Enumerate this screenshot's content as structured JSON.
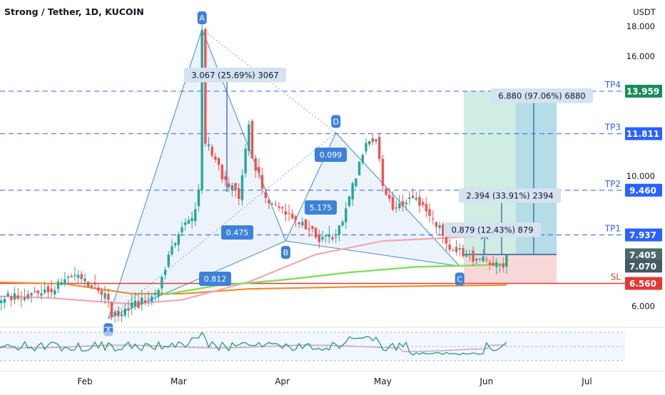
{
  "header": {
    "title": "Strong / Tether, 1D, KUCOIN"
  },
  "colors": {
    "bull": "#26a69a",
    "bear": "#ef5350",
    "pattern_stroke": "#5b9bd5",
    "pattern_fill": "#dfeaf7",
    "level_line": "#2962ff",
    "tp_badge": "#2962ff",
    "target_badge": "#1b8a5a",
    "sl_badge": "#e53935",
    "price_badge": "#26a69a",
    "ma_pink": "#f4a6b4",
    "ma_green": "#7ee05a",
    "ma_orange": "#f28c28",
    "rsi_line": "#2a9d6a",
    "rsi_ma": "#c39bd3",
    "profit_zone": "#bfe7da",
    "loss_zone": "#f8d4d4",
    "label_bg": "#d4e2f2"
  },
  "chart_data": {
    "type": "candlestick",
    "title": "Strong / Tether, 1D, KUCOIN",
    "y_unit": "USDT",
    "y_scale": "log",
    "ylim": [
      5.6,
      19.2
    ],
    "y_ticks": [
      "18.000",
      "16.000",
      "10.000",
      "6.000"
    ],
    "x_ticks": [
      "Feb",
      "Mar",
      "Apr",
      "May",
      "Jun",
      "Jul"
    ],
    "grid": false,
    "harmonic_points": [
      {
        "label": "X",
        "date": "2022-02-08",
        "price": 5.72
      },
      {
        "label": "A",
        "date": "2022-03-08",
        "price": 17.8
      },
      {
        "label": "B",
        "date": "2022-04-02",
        "price": 7.75
      },
      {
        "label": "C",
        "date": "2022-05-24",
        "price": 7.02
      },
      {
        "label": "D",
        "date": "2022-04-17",
        "price": 11.85
      }
    ],
    "ratio_labels": [
      "0.812",
      "0.475",
      "5.175",
      "0.099"
    ],
    "measure_labels": [
      "3.067 (25.69%) 3067",
      "0.879 (12.43%) 879",
      "2.394 (33.91%) 2394",
      "6.880 (97.06%) 6880"
    ],
    "levels": [
      {
        "name": "TP4",
        "price": 13.959,
        "label": "13.959"
      },
      {
        "name": "TP3",
        "price": 11.811,
        "label": "11.811"
      },
      {
        "name": "TP2",
        "price": 9.46,
        "label": "9.460"
      },
      {
        "name": "TP1",
        "price": 7.937,
        "label": "7.937"
      },
      {
        "name": "SL",
        "price": 6.56,
        "label": "6.560"
      }
    ],
    "price_labels": [
      "7.405",
      "7.070"
    ],
    "indicator": "RSI",
    "series_ma": [
      "pink moving average",
      "green moving average",
      "orange moving average"
    ]
  }
}
